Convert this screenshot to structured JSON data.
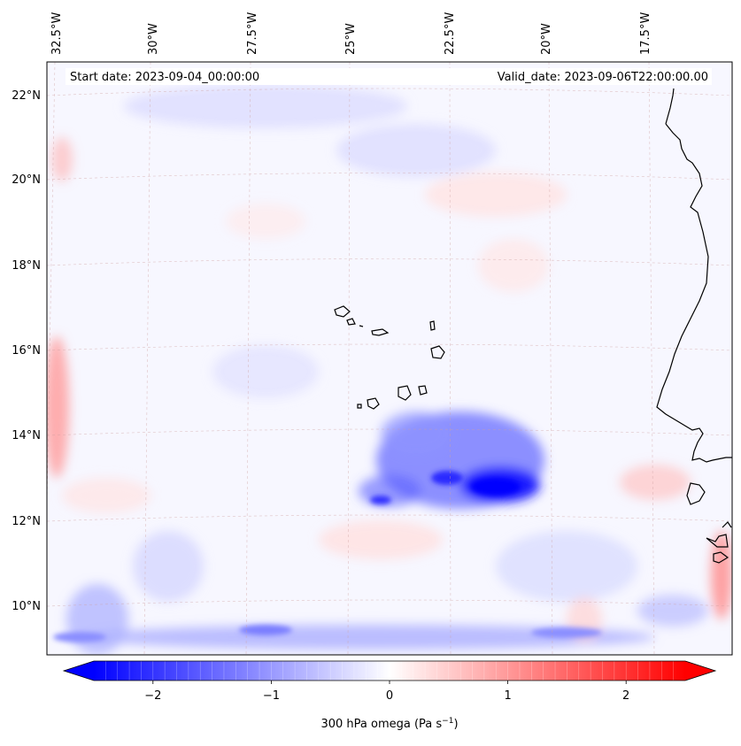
{
  "header": {
    "start_date": "Start date: 2023-09-04_00:00:00",
    "valid_date": "Valid_date: 2023-09-06T22:00:00.00"
  },
  "axes": {
    "lon_labels": [
      "32.5°W",
      "30°W",
      "27.5°W",
      "25°W",
      "22.5°W",
      "20°W",
      "17.5°W"
    ],
    "lat_labels": [
      "22°N",
      "20°N",
      "18°N",
      "16°N",
      "14°N",
      "12°N",
      "10°N"
    ]
  },
  "colorbar": {
    "ticks": [
      "−2",
      "−1",
      "0",
      "1",
      "2"
    ],
    "tick_values": [
      -2,
      -1,
      0,
      1,
      2
    ],
    "range": [
      -2.5,
      2.5
    ],
    "label": "300 hPa omega (Pa s",
    "label_sup": "−1",
    "label_end": ")",
    "colors": {
      "negative": "#0000ff",
      "zero": "#ffffff",
      "positive": "#ff0000"
    }
  }
}
